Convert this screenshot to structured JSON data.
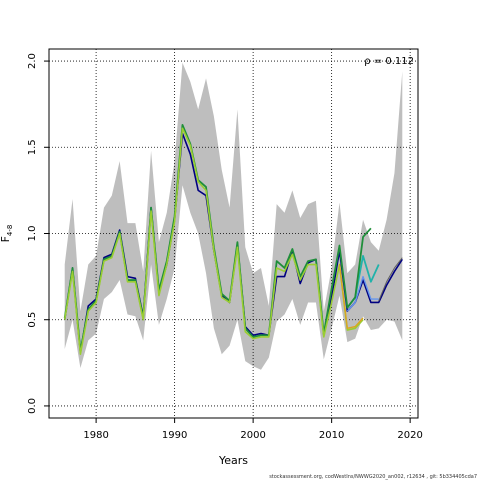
{
  "chart_data": {
    "type": "line",
    "xlabel": "Years",
    "ylabel_main": "F",
    "ylabel_sub": "4-8",
    "xlim": [
      1974,
      2021
    ],
    "ylim": [
      -0.07,
      2.07
    ],
    "x_ticks": [
      1980,
      1990,
      2000,
      2010,
      2020
    ],
    "y_ticks": [
      0.0,
      0.5,
      1.0,
      1.5,
      2.0
    ],
    "y_tick_labels": [
      "0.0",
      "0.5",
      "1.0",
      "1.5",
      "2.0"
    ],
    "grid": true,
    "annotation": "ρ = 0.112",
    "band_color": "#bebebe",
    "band": {
      "x": [
        1976,
        1977,
        1978,
        1979,
        1980,
        1981,
        1982,
        1983,
        1984,
        1985,
        1986,
        1987,
        1988,
        1989,
        1990,
        1991,
        1992,
        1993,
        1994,
        1995,
        1996,
        1997,
        1998,
        1999,
        2000,
        2001,
        2002,
        2003,
        2004,
        2005,
        2006,
        2007,
        2008,
        2009,
        2010,
        2011,
        2012,
        2013,
        2014,
        2015,
        2016,
        2017,
        2018,
        2019
      ],
      "upper": [
        0.82,
        1.2,
        0.55,
        0.82,
        0.87,
        1.15,
        1.22,
        1.42,
        1.06,
        1.06,
        0.78,
        1.48,
        0.95,
        1.12,
        1.42,
        1.99,
        1.88,
        1.72,
        1.9,
        1.68,
        1.37,
        1.15,
        1.72,
        0.92,
        0.77,
        0.8,
        0.58,
        1.17,
        1.12,
        1.25,
        1.09,
        1.17,
        1.19,
        0.55,
        0.8,
        1.18,
        0.77,
        0.82,
        1.08,
        0.95,
        0.9,
        1.08,
        1.35,
        1.94
      ],
      "lower": [
        0.33,
        0.5,
        0.22,
        0.38,
        0.42,
        0.62,
        0.66,
        0.73,
        0.53,
        0.52,
        0.38,
        0.82,
        0.47,
        0.62,
        0.8,
        1.28,
        1.12,
        1.0,
        0.77,
        0.45,
        0.3,
        0.35,
        0.5,
        0.26,
        0.23,
        0.21,
        0.28,
        0.49,
        0.53,
        0.62,
        0.47,
        0.6,
        0.6,
        0.27,
        0.45,
        0.64,
        0.37,
        0.39,
        0.52,
        0.44,
        0.45,
        0.5,
        0.49,
        0.38
      ]
    },
    "series": [
      {
        "color": "#000080",
        "width": 1.6,
        "x": [
          1976,
          1977,
          1978,
          1979,
          1980,
          1981,
          1982,
          1983,
          1984,
          1985,
          1986,
          1987,
          1988,
          1989,
          1990,
          1991,
          1992,
          1993,
          1994,
          1995,
          1996,
          1997,
          1998,
          1999,
          2000,
          2001,
          2002,
          2003,
          2004,
          2005,
          2006,
          2007,
          2008,
          2009,
          2010,
          2011,
          2012,
          2013,
          2014,
          2015,
          2016,
          2017,
          2018,
          2019
        ],
        "y": [
          0.5,
          0.8,
          0.31,
          0.58,
          0.62,
          0.86,
          0.88,
          1.02,
          0.75,
          0.74,
          0.52,
          1.15,
          0.66,
          0.82,
          1.08,
          1.58,
          1.46,
          1.25,
          1.22,
          0.9,
          0.64,
          0.6,
          0.94,
          0.46,
          0.41,
          0.42,
          0.41,
          0.75,
          0.75,
          0.9,
          0.71,
          0.83,
          0.85,
          0.41,
          0.63,
          0.9,
          0.55,
          0.6,
          0.73,
          0.6,
          0.6,
          0.7,
          0.78,
          0.85
        ]
      },
      {
        "color": "#606060",
        "width": 1.0,
        "x": [
          2016,
          2017,
          2018,
          2019
        ],
        "y": [
          0.61,
          0.72,
          0.8,
          0.86
        ]
      },
      {
        "color": "#6495ed",
        "width": 1.4,
        "x": [
          2012,
          2013,
          2014,
          2015,
          2016
        ],
        "y": [
          0.55,
          0.6,
          0.75,
          0.62,
          0.62
        ]
      },
      {
        "color": "#20b2aa",
        "width": 1.8,
        "x": [
          2012,
          2013,
          2014,
          2015,
          2016
        ],
        "y": [
          0.57,
          0.63,
          0.87,
          0.72,
          0.82
        ]
      },
      {
        "color": "#1f8f3a",
        "width": 1.8,
        "x": [
          1976,
          1977,
          1978,
          1979,
          1980,
          1981,
          1982,
          1983,
          1984,
          1985,
          1986,
          1987,
          1988,
          1989,
          1990,
          1991,
          1992,
          1993,
          1994,
          1995,
          1996,
          1997,
          1998,
          1999,
          2000,
          2001,
          2002,
          2003,
          2004,
          2005,
          2006,
          2007,
          2008,
          2009,
          2010,
          2011,
          2012,
          2013,
          2014,
          2015
        ],
        "y": [
          0.51,
          0.8,
          0.32,
          0.56,
          0.61,
          0.85,
          0.87,
          1.01,
          0.73,
          0.73,
          0.51,
          1.15,
          0.67,
          0.84,
          1.1,
          1.63,
          1.52,
          1.31,
          1.27,
          0.92,
          0.65,
          0.61,
          0.95,
          0.45,
          0.4,
          0.41,
          0.41,
          0.84,
          0.8,
          0.91,
          0.75,
          0.84,
          0.85,
          0.42,
          0.68,
          0.93,
          0.57,
          0.63,
          0.98,
          1.03
        ]
      },
      {
        "color": "#9acd32",
        "width": 1.6,
        "x": [
          1976,
          1977,
          1978,
          1979,
          1980,
          1981,
          1982,
          1983,
          1984,
          1985,
          1986,
          1987,
          1988,
          1989,
          1990,
          1991,
          1992,
          1993,
          1994,
          1995,
          1996,
          1997,
          1998,
          1999,
          2000,
          2001,
          2002,
          2003,
          2004,
          2005,
          2006,
          2007,
          2008,
          2009,
          2010,
          2011,
          2012,
          2013,
          2014
        ],
        "y": [
          0.5,
          0.78,
          0.3,
          0.55,
          0.6,
          0.84,
          0.86,
          1.0,
          0.72,
          0.72,
          0.5,
          1.13,
          0.64,
          0.82,
          1.07,
          1.61,
          1.51,
          1.3,
          1.25,
          0.9,
          0.63,
          0.6,
          0.92,
          0.43,
          0.39,
          0.4,
          0.4,
          0.8,
          0.78,
          0.88,
          0.73,
          0.82,
          0.82,
          0.4,
          0.6,
          0.82,
          0.44,
          0.45,
          0.5
        ]
      },
      {
        "color": "#daa520",
        "width": 1.4,
        "x": [
          2011,
          2012,
          2013,
          2014
        ],
        "y": [
          0.82,
          0.45,
          0.46,
          0.51
        ]
      }
    ]
  },
  "footnote": "stockassessment.org, codWestIns/NWWG2020_an002, r12634 , git: 5b334405cda7"
}
